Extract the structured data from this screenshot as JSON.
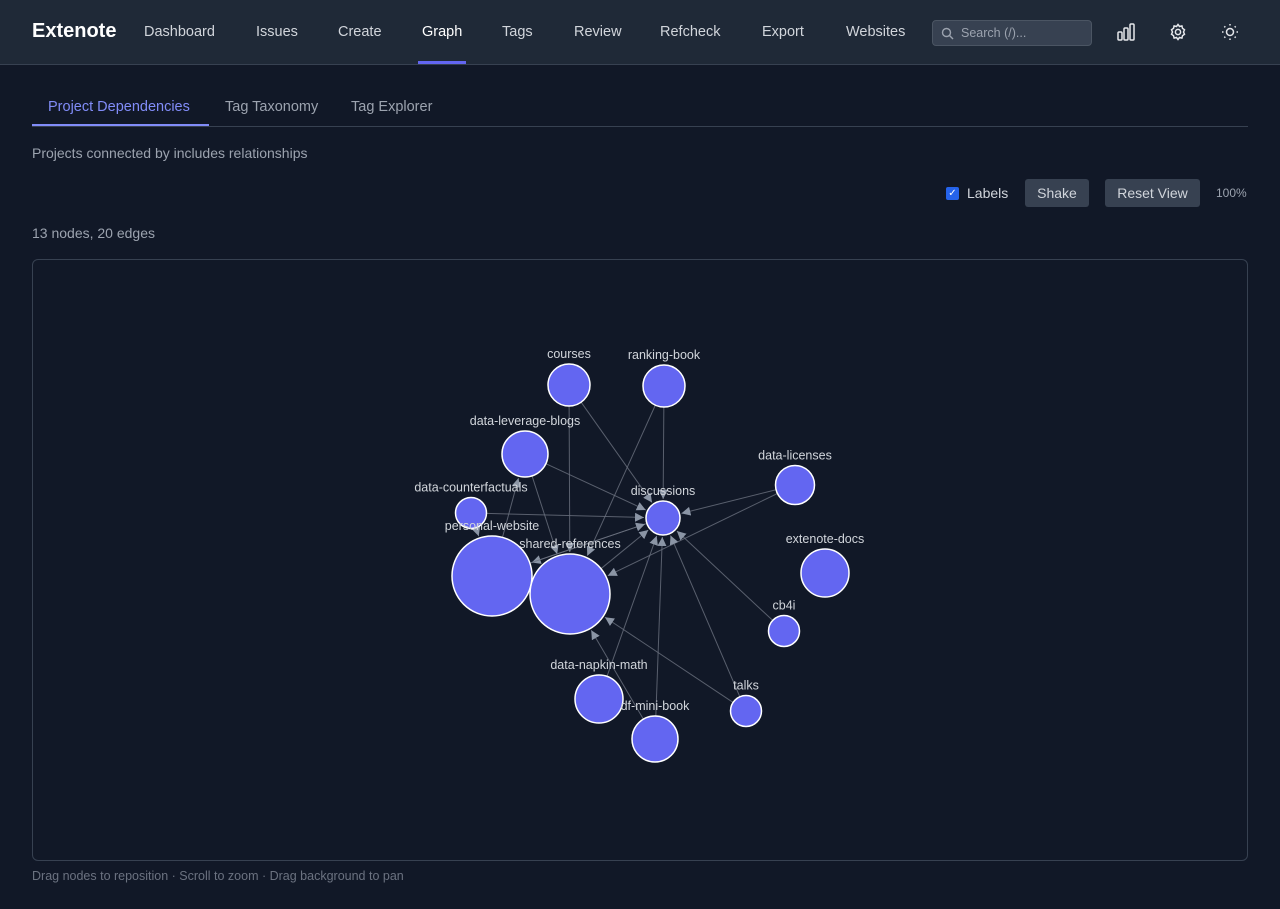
{
  "app": {
    "title": "Extenote"
  },
  "nav": {
    "items": [
      "Dashboard",
      "Issues",
      "Create",
      "Graph",
      "Tags",
      "Review",
      "Refcheck",
      "Export",
      "Websites"
    ],
    "active": "Graph"
  },
  "search": {
    "placeholder": "Search (/)..."
  },
  "header_icons": [
    "bar-chart-icon",
    "gear-icon",
    "sun-icon"
  ],
  "tabs": {
    "items": [
      "Project Dependencies",
      "Tag Taxonomy",
      "Tag Explorer"
    ],
    "active": "Project Dependencies"
  },
  "description": "Projects connected by includes relationships",
  "controls": {
    "labels_label": "Labels",
    "labels_checked": true,
    "shake_label": "Shake",
    "reset_label": "Reset View",
    "zoom": "100%"
  },
  "stats": "13 nodes, 20 edges",
  "graph": {
    "node_color": "#6366f1",
    "nodes": [
      "courses",
      "ranking-book",
      "data-leverage-blogs",
      "data-licenses",
      "data-counterfactuals",
      "discussions",
      "personal-website",
      "shared-references",
      "extenote-docs",
      "cb4i",
      "data-napkin-math",
      "df-mini-book",
      "talks"
    ],
    "edges": [
      [
        "courses",
        "discussions"
      ],
      [
        "courses",
        "shared-references"
      ],
      [
        "ranking-book",
        "discussions"
      ],
      [
        "ranking-book",
        "shared-references"
      ],
      [
        "data-leverage-blogs",
        "discussions"
      ],
      [
        "data-leverage-blogs",
        "shared-references"
      ],
      [
        "data-counterfactuals",
        "discussions"
      ],
      [
        "data-counterfactuals",
        "personal-website"
      ],
      [
        "personal-website",
        "data-leverage-blogs"
      ],
      [
        "discussions",
        "personal-website"
      ],
      [
        "shared-references",
        "discussions"
      ],
      [
        "data-licenses",
        "discussions"
      ],
      [
        "data-licenses",
        "shared-references"
      ],
      [
        "cb4i",
        "discussions"
      ],
      [
        "talks",
        "discussions"
      ],
      [
        "talks",
        "shared-references"
      ],
      [
        "data-napkin-math",
        "discussions"
      ],
      [
        "df-mini-book",
        "discussions"
      ],
      [
        "df-mini-book",
        "shared-references"
      ],
      [
        "personal-website",
        "discussions"
      ]
    ]
  },
  "hint": "Drag nodes to reposition · Scroll to zoom · Drag background to pan"
}
